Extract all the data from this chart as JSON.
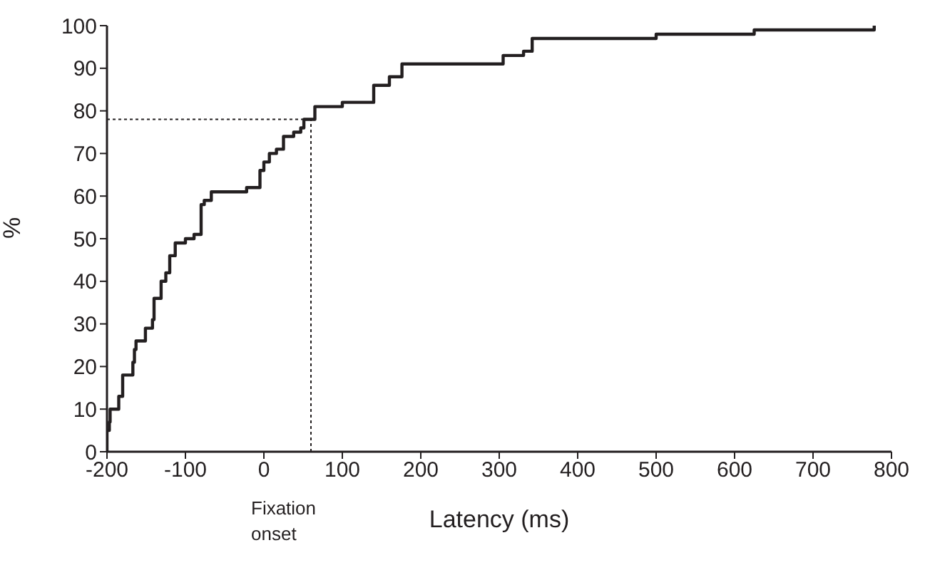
{
  "chart_data": {
    "type": "step",
    "xlabel": "Latency (ms)",
    "ylabel": "%",
    "x": [
      -200,
      -200,
      -197,
      -196,
      -185,
      -180,
      -167,
      -165,
      -163,
      -151,
      -142,
      -140,
      -131,
      -125,
      -120,
      -113,
      -100,
      -89,
      -80,
      -76,
      -67,
      -22,
      -5,
      0,
      7,
      16,
      25,
      38,
      47,
      51,
      65,
      100,
      140,
      160,
      176,
      305,
      331,
      342,
      500,
      625,
      778
    ],
    "values": [
      0,
      5,
      7,
      10,
      13,
      18,
      21,
      24,
      26,
      29,
      31,
      36,
      40,
      42,
      46,
      49,
      50,
      51,
      58,
      59,
      61,
      62,
      66,
      68,
      70,
      71,
      74,
      75,
      76,
      78,
      81,
      82,
      86,
      88,
      91,
      93,
      94,
      97,
      98,
      99,
      100
    ],
    "color": "#231f20",
    "xlim": [
      -200,
      800
    ],
    "xticks": [
      -200,
      -100,
      0,
      100,
      200,
      300,
      400,
      500,
      600,
      700,
      800
    ],
    "ylim": [
      0,
      100
    ],
    "yticks": [
      0,
      10,
      20,
      30,
      40,
      50,
      60,
      70,
      80,
      90,
      100
    ],
    "grid": false,
    "legend": false,
    "marker": "none",
    "line_style": "solid",
    "ref_lines": [
      {
        "axis": "y",
        "value": 78,
        "line_style": "dotted",
        "color": "#231f20"
      },
      {
        "axis": "x",
        "value": 60,
        "line_style": "dotted",
        "color": "#231f20"
      }
    ],
    "annotations": [
      "Fixation onset"
    ]
  }
}
